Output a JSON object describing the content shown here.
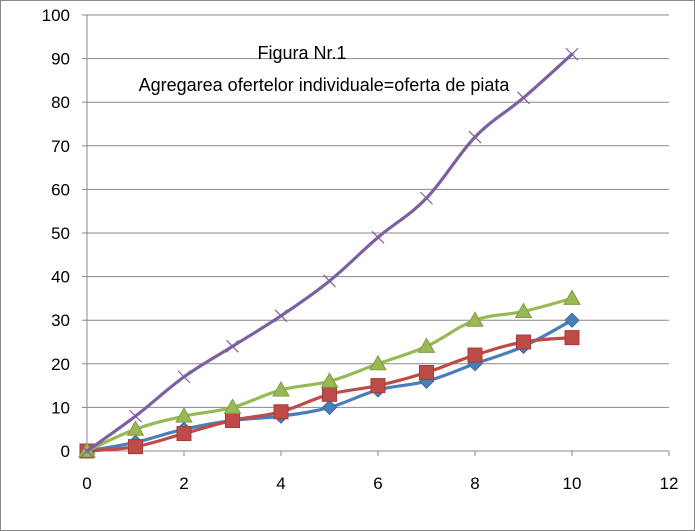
{
  "chart_data": {
    "type": "line",
    "title_line1": "Figura Nr.1",
    "title_line2": "Agregarea ofertelor individuale=oferta de piata",
    "xlabel": "",
    "ylabel": "",
    "xlim": [
      0,
      12
    ],
    "ylim": [
      0,
      100
    ],
    "x_ticks": [
      0,
      2,
      4,
      6,
      8,
      10,
      12
    ],
    "y_ticks": [
      0,
      10,
      20,
      30,
      40,
      50,
      60,
      70,
      80,
      90,
      100
    ],
    "grid": "horizontal",
    "legend": "none",
    "x": [
      0,
      1,
      2,
      3,
      4,
      5,
      6,
      7,
      8,
      9,
      10
    ],
    "series": [
      {
        "values": [
          0,
          2,
          5,
          7,
          8,
          10,
          14,
          16,
          20,
          24,
          30
        ],
        "color": "#4a7ebb",
        "marker": "diamond"
      },
      {
        "values": [
          0,
          1,
          4,
          7,
          9,
          13,
          15,
          18,
          22,
          25,
          26
        ],
        "color": "#be4b48",
        "marker": "square"
      },
      {
        "values": [
          0,
          5,
          8,
          10,
          14,
          16,
          20,
          24,
          30,
          32,
          35
        ],
        "color": "#98b954",
        "marker": "triangle"
      },
      {
        "values": [
          0,
          8,
          17,
          24,
          31,
          39,
          49,
          58,
          72,
          81,
          91
        ],
        "color": "#7d60a0",
        "marker": "x"
      }
    ]
  }
}
